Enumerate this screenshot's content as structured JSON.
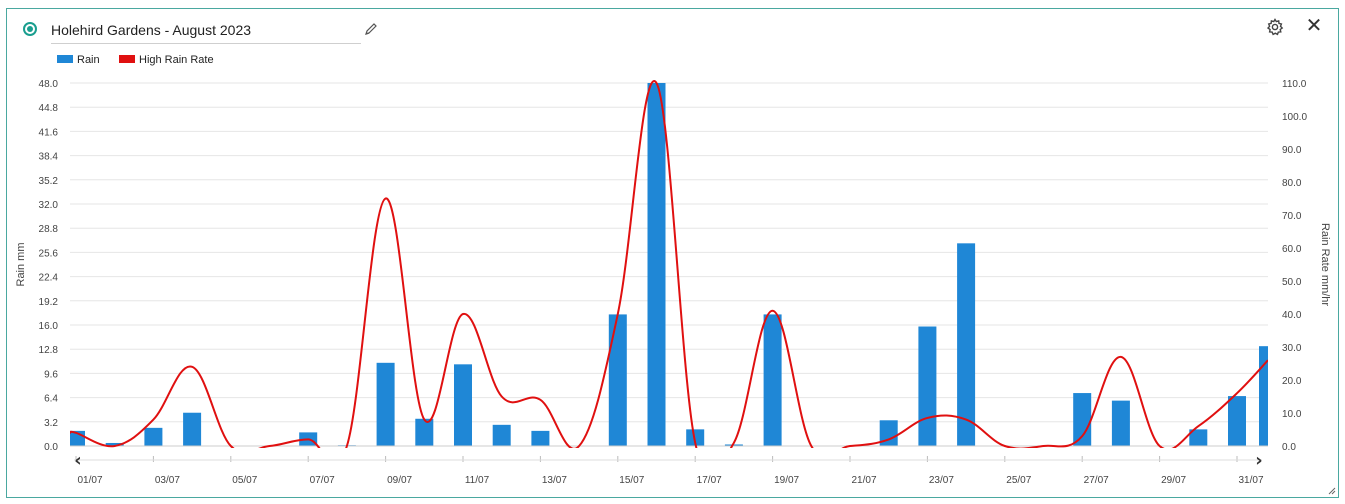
{
  "header": {
    "title": "Holehird Gardens - August 2023",
    "edit_icon": "pencil-icon",
    "settings_icon": "gear-icon",
    "close_icon": "close-icon",
    "close_glyph": "✕"
  },
  "colors": {
    "accent": "#1a9e8f",
    "rain_bar": "#1f87d6",
    "rain_rate_line": "#e01010"
  },
  "chart_data": {
    "type": "bar",
    "legend": [
      {
        "name": "Rain",
        "color": "#1f87d6"
      },
      {
        "name": "High Rain Rate",
        "color": "#e01010"
      }
    ],
    "legend_position": "top-left",
    "ylabel": "Rain mm",
    "y2label": "Rain Rate mm/hr",
    "ylim": [
      0,
      48.0
    ],
    "y2lim": [
      0,
      110.0
    ],
    "y_ticks": [
      "0.0",
      "3.2",
      "6.4",
      "9.6",
      "12.8",
      "16.0",
      "19.2",
      "22.4",
      "25.6",
      "28.8",
      "32.0",
      "35.2",
      "38.4",
      "41.6",
      "44.8",
      "48.0"
    ],
    "y2_ticks": [
      "0.0",
      "10.0",
      "20.0",
      "30.0",
      "40.0",
      "50.0",
      "60.0",
      "70.0",
      "80.0",
      "90.0",
      "100.0",
      "110.0"
    ],
    "x_tick_labels": [
      "01/07",
      "03/07",
      "05/07",
      "07/07",
      "09/07",
      "11/07",
      "13/07",
      "15/07",
      "17/07",
      "19/07",
      "21/07",
      "23/07",
      "25/07",
      "27/07",
      "29/07",
      "31/07"
    ],
    "grid": true,
    "series": [
      {
        "name": "Rain",
        "type": "bar",
        "axis": "left",
        "x": [
          1,
          2,
          3,
          4,
          5,
          6,
          7,
          8,
          9,
          10,
          11,
          12,
          13,
          14,
          15,
          16,
          17,
          18,
          19,
          20,
          21,
          22,
          23,
          24,
          25,
          26,
          27,
          28,
          29,
          30,
          31
        ],
        "values": [
          2.0,
          0.4,
          2.4,
          4.4,
          0,
          0,
          1.8,
          0.1,
          11.0,
          3.6,
          10.8,
          2.8,
          2.0,
          0,
          17.4,
          48.0,
          2.2,
          0.2,
          17.4,
          0,
          0,
          3.4,
          15.8,
          26.8,
          0,
          0,
          7.0,
          6.0,
          0,
          2.2,
          6.6
        ]
      },
      {
        "name": "High Rain Rate",
        "type": "line",
        "axis": "right",
        "x": [
          1,
          2,
          3,
          4,
          5,
          6,
          7,
          8,
          9,
          10,
          11,
          12,
          13,
          14,
          15,
          16,
          17,
          18,
          19,
          20,
          21,
          22,
          23,
          24,
          25,
          26,
          27,
          28,
          29,
          30,
          31
        ],
        "values": [
          4,
          0,
          8,
          24,
          0,
          0,
          2,
          0,
          75,
          8,
          40,
          15,
          14,
          0,
          40,
          110,
          1,
          1,
          41,
          0,
          0,
          2,
          8.5,
          8,
          0,
          0,
          3,
          27,
          0,
          6,
          16
        ]
      }
    ],
    "nav": {
      "prev": "‹",
      "next": "›"
    },
    "partial_bar_value": 13.2,
    "partial_line_value": 26
  }
}
